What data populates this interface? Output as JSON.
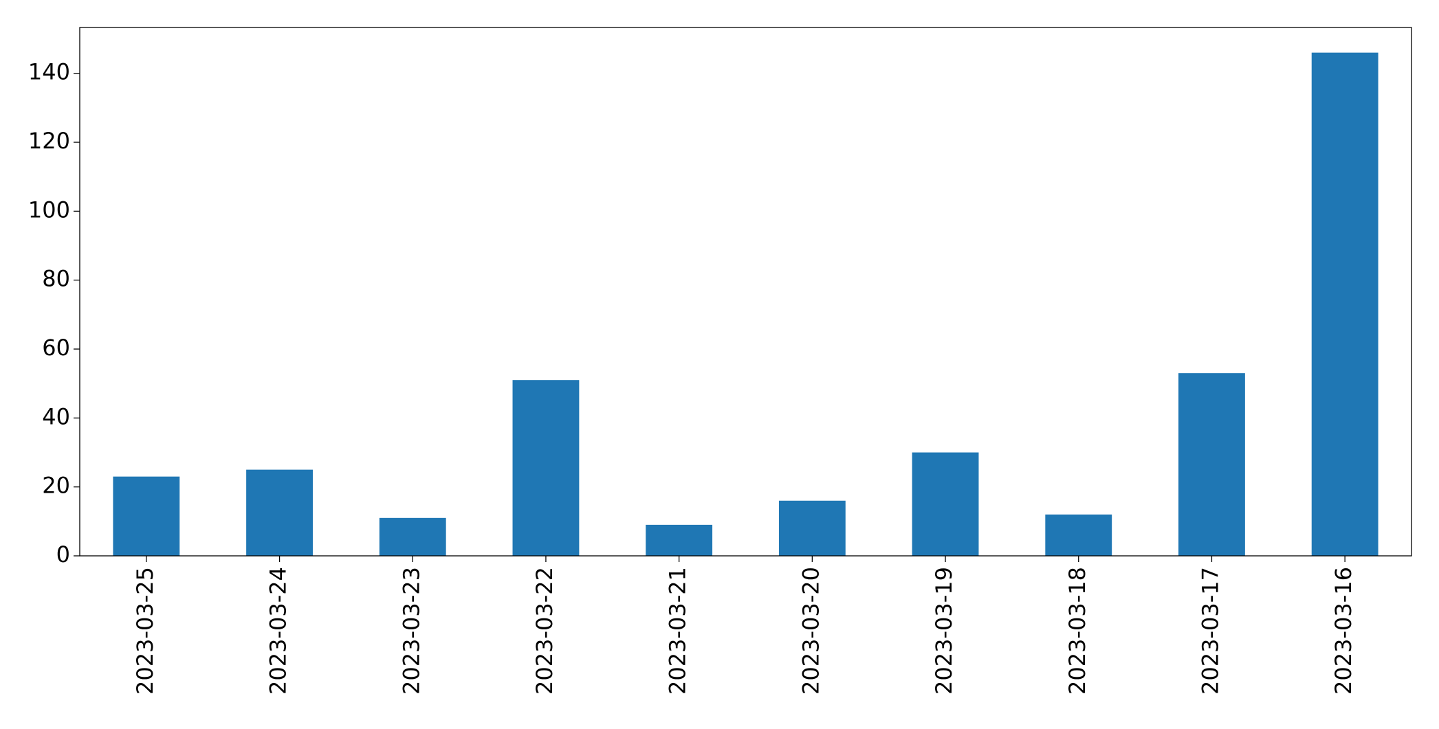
{
  "chart_data": {
    "type": "bar",
    "categories": [
      "2023-03-25",
      "2023-03-24",
      "2023-03-23",
      "2023-03-22",
      "2023-03-21",
      "2023-03-20",
      "2023-03-19",
      "2023-03-18",
      "2023-03-17",
      "2023-03-16"
    ],
    "values": [
      23,
      25,
      11,
      51,
      9,
      16,
      30,
      12,
      53,
      146
    ],
    "color": "#1f77b4",
    "ylim": [
      0,
      153.3
    ],
    "yticks": [
      0,
      20,
      40,
      60,
      80,
      100,
      120,
      140
    ],
    "grid": false
  }
}
